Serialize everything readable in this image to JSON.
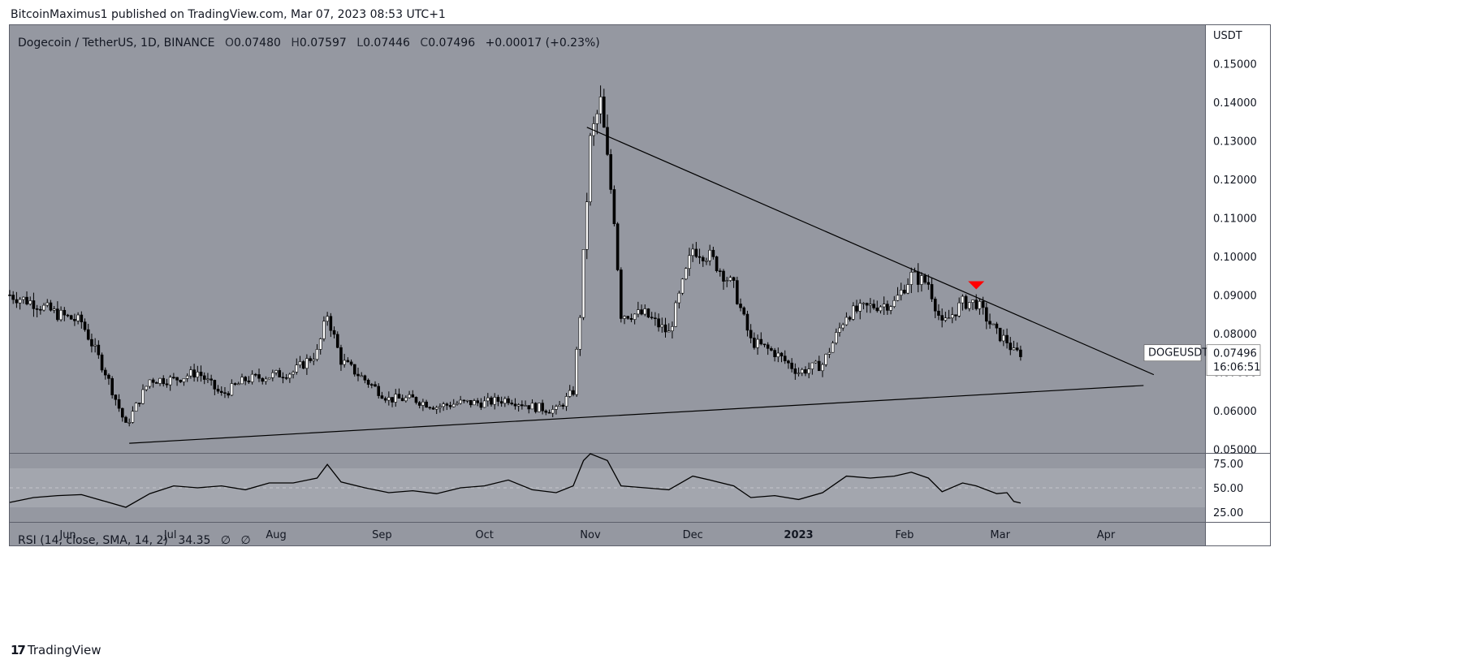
{
  "header": {
    "published": "BitcoinMaximus1 published on TradingView.com, Mar 07, 2023 08:53 UTC+1"
  },
  "legend": {
    "symbol": "Dogecoin / TetherUS, 1D, BINANCE",
    "o_label": "O",
    "o_value": "0.07480",
    "h_label": "H",
    "h_value": "0.07597",
    "l_label": "L",
    "l_value": "0.07446",
    "c_label": "C",
    "c_value": "0.07496",
    "change": "+0.00017 (+0.23%)"
  },
  "price_scale": {
    "currency": "USDT",
    "tick_labels": [
      "0.15000",
      "0.14000",
      "0.13000",
      "0.12000",
      "0.11000",
      "0.10000",
      "0.09000",
      "0.08000",
      "0.07000",
      "0.06000",
      "0.05000"
    ]
  },
  "last_price": {
    "symbol_tag": "DOGEUSDT",
    "value": "0.07496",
    "countdown": "16:06:51"
  },
  "rsi": {
    "legend_name": "RSI (14, close, SMA, 14, 2)",
    "legend_value": "34.35",
    "legend_extra1": "∅",
    "legend_extra2": "∅",
    "tick_labels": [
      "75.00",
      "50.00",
      "25.00"
    ]
  },
  "time_axis": {
    "labels": [
      "Jun",
      "Jul",
      "Aug",
      "Sep",
      "Oct",
      "Nov",
      "Dec",
      "2023",
      "Feb",
      "Mar",
      "Apr"
    ]
  },
  "footer": {
    "brand": "TradingView"
  },
  "colors": {
    "chart_bg": "#9598a1",
    "rsi_band": "#a3a6ae",
    "candle": "#000000",
    "line": "#000000",
    "marker": "#ff0000",
    "axis_text": "#131722"
  },
  "chart_data": [
    {
      "type": "candlestick",
      "title": "Dogecoin / TetherUS, 1D, BINANCE",
      "ylabel": "USDT",
      "ylim": [
        0.049,
        0.16
      ],
      "x_range": [
        "2022-05-15",
        "2023-04-30"
      ],
      "x_ticks": [
        "Jun",
        "Jul",
        "Aug",
        "Sep",
        "Oct",
        "Nov",
        "Dec",
        "2023",
        "Feb",
        "Mar",
        "Apr"
      ],
      "y_ticks": [
        0.05,
        0.06,
        0.07,
        0.08,
        0.09,
        0.1,
        0.11,
        0.12,
        0.13,
        0.14,
        0.15
      ],
      "grid": false,
      "approx_close_path": [
        [
          "2022-05-15",
          0.09
        ],
        [
          "2022-05-22",
          0.088
        ],
        [
          "2022-05-29",
          0.085
        ],
        [
          "2022-06-05",
          0.083
        ],
        [
          "2022-06-12",
          0.07
        ],
        [
          "2022-06-18",
          0.056
        ],
        [
          "2022-06-25",
          0.068
        ],
        [
          "2022-07-02",
          0.068
        ],
        [
          "2022-07-09",
          0.07
        ],
        [
          "2022-07-16",
          0.064
        ],
        [
          "2022-07-23",
          0.068
        ],
        [
          "2022-07-30",
          0.069
        ],
        [
          "2022-08-06",
          0.07
        ],
        [
          "2022-08-13",
          0.075
        ],
        [
          "2022-08-16",
          0.085
        ],
        [
          "2022-08-20",
          0.073
        ],
        [
          "2022-08-27",
          0.068
        ],
        [
          "2022-09-03",
          0.063
        ],
        [
          "2022-09-10",
          0.063
        ],
        [
          "2022-09-17",
          0.061
        ],
        [
          "2022-09-24",
          0.062
        ],
        [
          "2022-10-01",
          0.062
        ],
        [
          "2022-10-08",
          0.063
        ],
        [
          "2022-10-15",
          0.061
        ],
        [
          "2022-10-22",
          0.06
        ],
        [
          "2022-10-27",
          0.065
        ],
        [
          "2022-10-29",
          0.085
        ],
        [
          "2022-11-01",
          0.13
        ],
        [
          "2022-11-04",
          0.14
        ],
        [
          "2022-11-08",
          0.11
        ],
        [
          "2022-11-10",
          0.085
        ],
        [
          "2022-11-17",
          0.085
        ],
        [
          "2022-11-24",
          0.08
        ],
        [
          "2022-12-01",
          0.102
        ],
        [
          "2022-12-06",
          0.1
        ],
        [
          "2022-12-13",
          0.092
        ],
        [
          "2022-12-18",
          0.078
        ],
        [
          "2022-12-25",
          0.075
        ],
        [
          "2023-01-01",
          0.07
        ],
        [
          "2023-01-08",
          0.072
        ],
        [
          "2023-01-15",
          0.085
        ],
        [
          "2023-01-22",
          0.087
        ],
        [
          "2023-01-29",
          0.088
        ],
        [
          "2023-02-03",
          0.095
        ],
        [
          "2023-02-08",
          0.093
        ],
        [
          "2023-02-12",
          0.082
        ],
        [
          "2023-02-18",
          0.088
        ],
        [
          "2023-02-22",
          0.088
        ],
        [
          "2023-02-28",
          0.08
        ],
        [
          "2023-03-03",
          0.078
        ],
        [
          "2023-03-05",
          0.075
        ],
        [
          "2023-03-07",
          0.075
        ]
      ],
      "trendlines": [
        {
          "name": "",
          "from": [
            "2022-10-31",
            0.1335
          ],
          "to": [
            "2023-04-15",
            0.0693
          ]
        },
        {
          "name": "",
          "from": [
            "2022-06-19",
            0.0515
          ],
          "to": [
            "2023-04-12",
            0.0665
          ]
        }
      ],
      "annotations": [
        {
          "type": "down-arrow",
          "at": [
            "2023-02-22",
            0.0925
          ]
        }
      ],
      "last_close": 0.07496
    },
    {
      "type": "line",
      "title": "RSI (14, close, SMA, 14, 2)",
      "ylim": [
        15,
        85
      ],
      "y_ticks": [
        25,
        50,
        75
      ],
      "band": [
        30,
        70
      ],
      "midline": 50,
      "series": [
        {
          "name": "RSI",
          "points": [
            [
              "2022-05-15",
              35
            ],
            [
              "2022-05-22",
              40
            ],
            [
              "2022-05-29",
              42
            ],
            [
              "2022-06-05",
              43
            ],
            [
              "2022-06-12",
              36
            ],
            [
              "2022-06-18",
              30
            ],
            [
              "2022-06-25",
              44
            ],
            [
              "2022-07-02",
              52
            ],
            [
              "2022-07-09",
              50
            ],
            [
              "2022-07-16",
              52
            ],
            [
              "2022-07-23",
              48
            ],
            [
              "2022-07-30",
              55
            ],
            [
              "2022-08-06",
              55
            ],
            [
              "2022-08-13",
              60
            ],
            [
              "2022-08-16",
              74
            ],
            [
              "2022-08-20",
              56
            ],
            [
              "2022-08-27",
              50
            ],
            [
              "2022-09-03",
              45
            ],
            [
              "2022-09-10",
              47
            ],
            [
              "2022-09-17",
              44
            ],
            [
              "2022-09-24",
              50
            ],
            [
              "2022-10-01",
              52
            ],
            [
              "2022-10-08",
              58
            ],
            [
              "2022-10-15",
              48
            ],
            [
              "2022-10-22",
              45
            ],
            [
              "2022-10-27",
              52
            ],
            [
              "2022-10-30",
              78
            ],
            [
              "2022-11-01",
              85
            ],
            [
              "2022-11-06",
              78
            ],
            [
              "2022-11-10",
              52
            ],
            [
              "2022-11-17",
              50
            ],
            [
              "2022-11-24",
              48
            ],
            [
              "2022-12-01",
              62
            ],
            [
              "2022-12-06",
              58
            ],
            [
              "2022-12-13",
              52
            ],
            [
              "2022-12-18",
              40
            ],
            [
              "2022-12-25",
              42
            ],
            [
              "2023-01-01",
              38
            ],
            [
              "2023-01-08",
              45
            ],
            [
              "2023-01-15",
              62
            ],
            [
              "2023-01-22",
              60
            ],
            [
              "2023-01-29",
              62
            ],
            [
              "2023-02-03",
              66
            ],
            [
              "2023-02-08",
              60
            ],
            [
              "2023-02-12",
              46
            ],
            [
              "2023-02-18",
              55
            ],
            [
              "2023-02-22",
              52
            ],
            [
              "2023-02-28",
              44
            ],
            [
              "2023-03-03",
              45
            ],
            [
              "2023-03-05",
              36
            ],
            [
              "2023-03-07",
              34.35
            ]
          ]
        }
      ]
    }
  ]
}
